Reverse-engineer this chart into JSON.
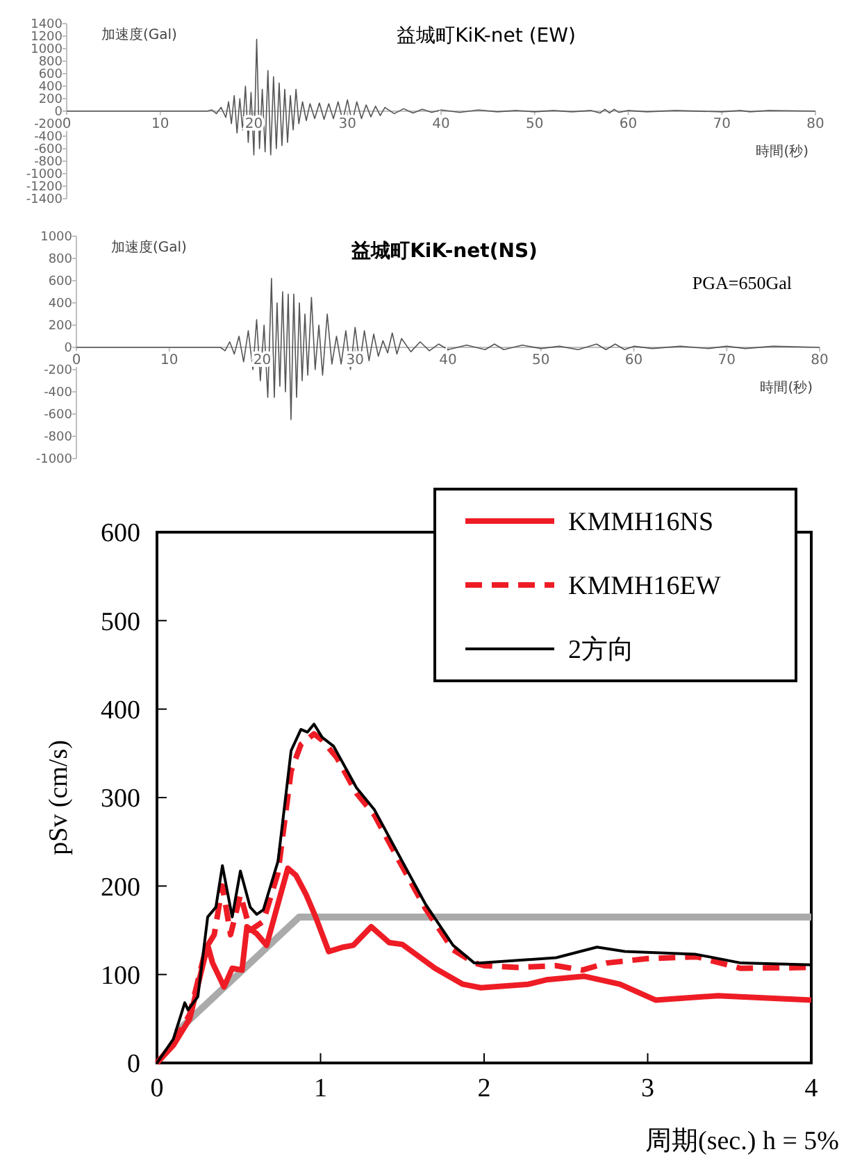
{
  "chart_data": [
    {
      "type": "line",
      "title": "益城町KiK-net (EW)",
      "ylabel": "加速度(Gal)",
      "xlabel": "時間(秒)",
      "xlim": [
        0,
        80
      ],
      "xticks": [
        0,
        10,
        20,
        30,
        40,
        50,
        60,
        70,
        80
      ],
      "ylim": [
        -1400,
        1400
      ],
      "yticks": [
        -1400,
        -1200,
        -1000,
        -800,
        -600,
        -400,
        -200,
        0,
        200,
        400,
        600,
        800,
        1000,
        1200,
        1400
      ],
      "series": [
        {
          "color": "#555555",
          "x": [
            0,
            15,
            15.5,
            16,
            16.5,
            17,
            17.3,
            17.6,
            17.9,
            18.2,
            18.5,
            18.8,
            19.1,
            19.4,
            19.7,
            20.0,
            20.3,
            20.6,
            20.9,
            21.2,
            21.5,
            21.8,
            22.1,
            22.4,
            22.7,
            23.0,
            23.3,
            23.6,
            23.9,
            24.2,
            24.5,
            24.8,
            25.2,
            25.6,
            26.0,
            26.5,
            27,
            27.5,
            28,
            28.5,
            29,
            29.5,
            30,
            30.5,
            31,
            31.5,
            32,
            32.5,
            33,
            33.5,
            34,
            35,
            36,
            37,
            38,
            39,
            40,
            42,
            44,
            46,
            48,
            50,
            52,
            54,
            56,
            57,
            57.5,
            58,
            58.5,
            59,
            60,
            62,
            65,
            70,
            72,
            73,
            75,
            80
          ],
          "values": [
            0,
            0,
            20,
            -40,
            60,
            -100,
            150,
            -200,
            250,
            -350,
            200,
            -300,
            400,
            -500,
            300,
            -700,
            1150,
            -600,
            350,
            -650,
            650,
            -700,
            550,
            -600,
            450,
            -550,
            350,
            -500,
            250,
            -300,
            350,
            -200,
            150,
            -150,
            120,
            -120,
            130,
            -130,
            120,
            -120,
            150,
            -150,
            180,
            -180,
            150,
            -120,
            100,
            -90,
            80,
            -70,
            60,
            -40,
            40,
            -30,
            30,
            -20,
            20,
            -20,
            20,
            -10,
            10,
            -10,
            10,
            -10,
            10,
            -30,
            30,
            -30,
            30,
            -20,
            10,
            -10,
            10,
            -10,
            10,
            -10,
            10,
            0
          ]
        }
      ]
    },
    {
      "type": "line",
      "title": "益城町KiK-net(NS)",
      "ylabel": "加速度(Gal)",
      "xlabel": "時間(秒)",
      "annotations": [
        "PGA=650Gal"
      ],
      "xlim": [
        0,
        80
      ],
      "xticks": [
        0,
        10,
        20,
        30,
        40,
        50,
        60,
        70,
        80
      ],
      "ylim": [
        -1000,
        1000
      ],
      "yticks": [
        -1000,
        -800,
        -600,
        -400,
        -200,
        0,
        200,
        400,
        600,
        800,
        1000
      ],
      "series": [
        {
          "color": "#555555",
          "x": [
            0,
            15.5,
            16,
            16.5,
            17,
            17.5,
            18,
            18.5,
            19,
            19.4,
            19.8,
            20.2,
            20.6,
            21.0,
            21.3,
            21.6,
            21.9,
            22.2,
            22.5,
            22.8,
            23.1,
            23.4,
            23.7,
            24.0,
            24.3,
            24.6,
            24.9,
            25.3,
            25.7,
            26.1,
            26.5,
            27,
            27.5,
            28,
            28.5,
            29,
            29.5,
            30,
            30.5,
            31,
            31.5,
            32,
            32.5,
            33,
            33.5,
            34,
            34.5,
            35,
            36,
            37,
            38,
            39,
            40,
            42,
            44,
            45,
            46,
            48,
            50,
            52,
            54,
            56,
            57,
            58,
            59,
            60,
            62,
            65,
            68,
            70,
            72,
            75,
            80
          ],
          "values": [
            0,
            0,
            -30,
            50,
            -60,
            100,
            -130,
            150,
            -200,
            250,
            -300,
            200,
            -450,
            620,
            -450,
            400,
            -350,
            500,
            -400,
            480,
            -650,
            480,
            -450,
            400,
            -300,
            300,
            -250,
            450,
            -200,
            200,
            -250,
            300,
            -150,
            100,
            -150,
            150,
            -200,
            180,
            -150,
            150,
            -120,
            120,
            -80,
            60,
            -50,
            130,
            -60,
            80,
            -40,
            50,
            -30,
            30,
            -20,
            20,
            -20,
            30,
            -20,
            20,
            -10,
            10,
            -20,
            30,
            -20,
            30,
            -20,
            10,
            -10,
            10,
            -10,
            10,
            -10,
            10,
            0
          ]
        }
      ]
    },
    {
      "type": "line",
      "ylabel": "pSv (cm/s)",
      "xlabel": "周期(sec.)  h = 5%",
      "xlim": [
        0,
        4
      ],
      "xticks": [
        0,
        1,
        2,
        3,
        4
      ],
      "ylim": [
        0,
        600
      ],
      "yticks": [
        0,
        100,
        200,
        300,
        400,
        500,
        600
      ],
      "legend": "top right",
      "series": [
        {
          "color": "#aaaaaa",
          "x": [
            0.12,
            0.87,
            4
          ],
          "values": [
            35,
            165,
            165
          ]
        },
        {
          "name": "KMMH16NS",
          "color": "#ee1c25",
          "line_style": "solid",
          "x": [
            0,
            0.1,
            0.2,
            0.31,
            0.34,
            0.41,
            0.46,
            0.52,
            0.55,
            0.61,
            0.67,
            0.74,
            0.8,
            0.85,
            0.91,
            0.97,
            1.05,
            1.14,
            1.2,
            1.31,
            1.42,
            1.5,
            1.7,
            1.87,
            1.98,
            2.27,
            2.38,
            2.61,
            2.83,
            3.05,
            3.43,
            4
          ],
          "values": [
            0,
            20,
            50,
            133,
            113,
            86,
            107,
            105,
            154,
            146,
            133,
            180,
            220,
            212,
            191,
            165,
            126,
            131,
            133,
            154,
            136,
            134,
            107,
            89,
            85,
            89,
            94,
            98,
            89,
            71,
            76,
            71
          ]
        },
        {
          "name": "KMMH16EW",
          "color": "#ee1c25",
          "line_style": "dashed",
          "x": [
            0,
            0.1,
            0.2,
            0.3,
            0.35,
            0.4,
            0.45,
            0.51,
            0.57,
            0.65,
            0.74,
            0.82,
            0.88,
            0.96,
            1.01,
            1.1,
            1.22,
            1.33,
            1.47,
            1.64,
            1.81,
            1.94,
            2,
            2.2,
            2.44,
            2.6,
            2.75,
            3,
            3.3,
            3.57,
            4
          ],
          "values": [
            0,
            22,
            55,
            130,
            145,
            200,
            145,
            190,
            150,
            160,
            215,
            330,
            360,
            372,
            365,
            345,
            305,
            280,
            232,
            175,
            128,
            113,
            110,
            108,
            110,
            105,
            113,
            118,
            120,
            107,
            108
          ]
        },
        {
          "name": "2方向",
          "color": "#000000",
          "line_style": "solid",
          "x": [
            0,
            0.1,
            0.17,
            0.19,
            0.25,
            0.31,
            0.36,
            0.4,
            0.46,
            0.51,
            0.57,
            0.61,
            0.65,
            0.74,
            0.82,
            0.88,
            0.92,
            0.96,
            1.01,
            1.08,
            1.22,
            1.33,
            1.47,
            1.64,
            1.81,
            1.94,
            1.98,
            2.44,
            2.69,
            2.86,
            3.29,
            3.57,
            4
          ],
          "values": [
            0,
            27,
            68,
            60,
            75,
            165,
            176,
            223,
            165,
            217,
            176,
            168,
            173,
            228,
            353,
            377,
            374,
            383,
            368,
            358,
            311,
            286,
            238,
            180,
            133,
            113,
            113,
            119,
            131,
            126,
            123,
            113,
            111
          ]
        }
      ]
    }
  ]
}
